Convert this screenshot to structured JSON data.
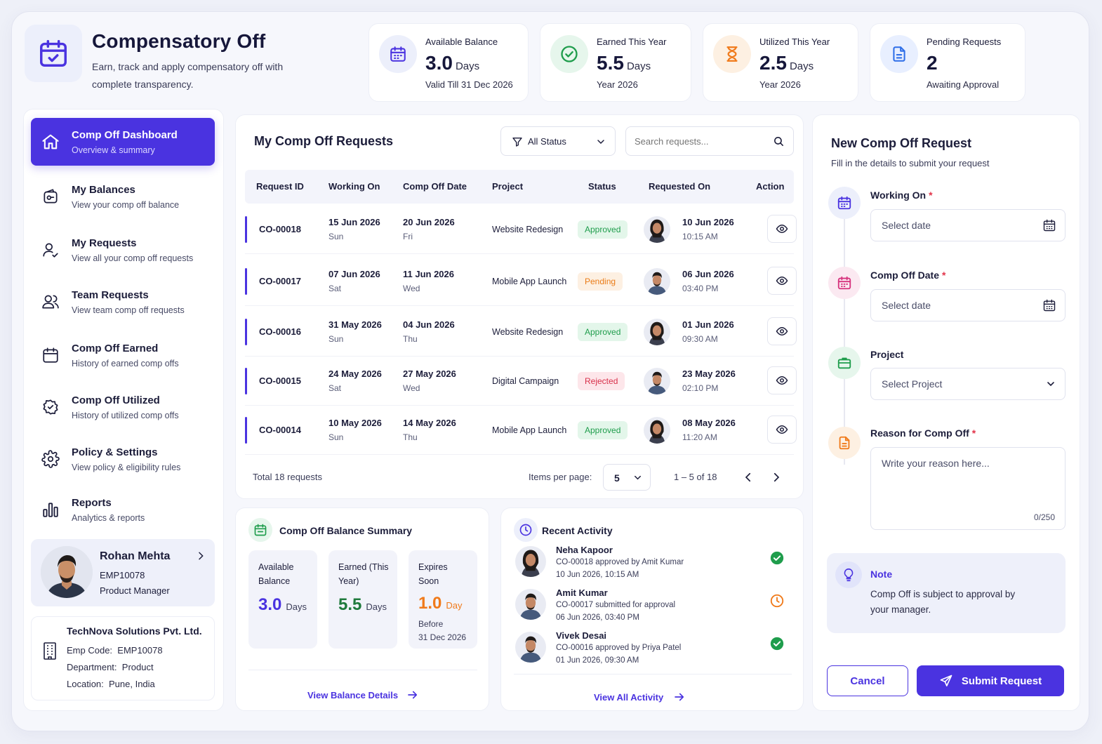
{
  "header": {
    "title": "Compensatory Off",
    "subtitle": "Earn, track and apply compensatory off with complete transparency."
  },
  "stats": [
    {
      "label": "Available Balance",
      "value": "3.0",
      "unit": "Days",
      "sub": "Valid Till 31 Dec 2026",
      "icon": "calendar-icon",
      "color": "#4a33e0"
    },
    {
      "label": "Earned This Year",
      "value": "5.5",
      "unit": "Days",
      "sub": "Year 2026",
      "icon": "check-circle-icon",
      "color": "#1f9d4c"
    },
    {
      "label": "Utilized This Year",
      "value": "2.5",
      "unit": "Days",
      "sub": "Year 2026",
      "icon": "hourglass-icon",
      "color": "#f07a1a"
    },
    {
      "label": "Pending Requests",
      "value": "2",
      "unit": "",
      "sub": "Awaiting Approval",
      "icon": "document-icon",
      "color": "#2f6fe8"
    }
  ],
  "sidebar": {
    "items": [
      {
        "title": "Comp Off Dashboard",
        "sub": "Overview & summary",
        "icon": "home-icon"
      },
      {
        "title": "My Balances",
        "sub": "View your comp off balance",
        "icon": "wallet-icon"
      },
      {
        "title": "My Requests",
        "sub": "View all your comp off requests",
        "icon": "user-icon"
      },
      {
        "title": "Team Requests",
        "sub": "View team comp off requests",
        "icon": "users-icon"
      },
      {
        "title": "Comp Off Earned",
        "sub": "History of earned comp offs",
        "icon": "calendar-icon"
      },
      {
        "title": "Comp Off Utilized",
        "sub": "History of utilized comp offs",
        "icon": "badge-icon"
      },
      {
        "title": "Policy & Settings",
        "sub": "View policy & eligibility rules",
        "icon": "gear-icon"
      },
      {
        "title": "Reports",
        "sub": "Analytics & reports",
        "icon": "bar-chart-icon"
      }
    ],
    "profile": {
      "name": "Rohan Mehta",
      "emp_id": "EMP10078",
      "role": "Product Manager"
    },
    "company": {
      "name": "TechNova Solutions Pvt. Ltd.",
      "emp_code_label": "Emp Code:",
      "emp_code": "EMP10078",
      "dept_label": "Department:",
      "dept": "Product",
      "loc_label": "Location:",
      "loc": "Pune, India"
    }
  },
  "requests": {
    "title": "My Comp Off Requests",
    "filter": "All Status",
    "search_placeholder": "Search requests...",
    "columns": [
      "Request ID",
      "Working On",
      "Comp Off Date",
      "Project",
      "Status",
      "Requested On",
      "Action"
    ],
    "rows": [
      {
        "id": "CO-00018",
        "work_date": "15 Jun 2026",
        "work_day": "Sun",
        "off_date": "20 Jun 2026",
        "off_day": "Fri",
        "project": "Website Redesign",
        "status": "Approved",
        "req_date": "10 Jun 2026",
        "req_time": "10:15 AM",
        "gender": "f"
      },
      {
        "id": "CO-00017",
        "work_date": "07 Jun 2026",
        "work_day": "Sat",
        "off_date": "11 Jun 2026",
        "off_day": "Wed",
        "project": "Mobile App Launch",
        "status": "Pending",
        "req_date": "06 Jun 2026",
        "req_time": "03:40 PM",
        "gender": "m"
      },
      {
        "id": "CO-00016",
        "work_date": "31 May 2026",
        "work_day": "Sun",
        "off_date": "04 Jun 2026",
        "off_day": "Thu",
        "project": "Website Redesign",
        "status": "Approved",
        "req_date": "01 Jun 2026",
        "req_time": "09:30 AM",
        "gender": "f"
      },
      {
        "id": "CO-00015",
        "work_date": "24 May 2026",
        "work_day": "Sat",
        "off_date": "27 May 2026",
        "off_day": "Wed",
        "project": "Digital Campaign",
        "status": "Rejected",
        "req_date": "23 May 2026",
        "req_time": "02:10 PM",
        "gender": "m"
      },
      {
        "id": "CO-00014",
        "work_date": "10 May 2026",
        "work_day": "Sun",
        "off_date": "14 May 2026",
        "off_day": "Thu",
        "project": "Mobile App Launch",
        "status": "Approved",
        "req_date": "08 May 2026",
        "req_time": "11:20 AM",
        "gender": "f"
      }
    ],
    "total": "Total 18 requests",
    "items_per_page_label": "Items per page:",
    "items_per_page": "5",
    "range": "1 – 5 of 18"
  },
  "balance_summary": {
    "title": "Comp Off Balance Summary",
    "available": {
      "label": "Available Balance",
      "value": "3.0",
      "unit": "Days"
    },
    "earned": {
      "label": "Earned (This Year)",
      "value": "5.5",
      "unit": "Days"
    },
    "expires": {
      "label": "Expires Soon",
      "value": "1.0",
      "unit": "Day",
      "before": "Before",
      "date": "31 Dec 2026"
    },
    "link": "View Balance Details"
  },
  "activity": {
    "title": "Recent Activity",
    "items": [
      {
        "name": "Neha Kapoor",
        "text": "CO-00018 approved by Amit Kumar",
        "time": "10 Jun 2026, 10:15 AM",
        "state": "done",
        "gender": "f"
      },
      {
        "name": "Amit Kumar",
        "text": "CO-00017 submitted for approval",
        "time": "06 Jun 2026, 03:40 PM",
        "state": "pending",
        "gender": "m"
      },
      {
        "name": "Vivek Desai",
        "text": "CO-00016 approved by Priya Patel",
        "time": "01 Jun 2026, 09:30 AM",
        "state": "done",
        "gender": "m"
      }
    ],
    "link": "View All Activity"
  },
  "new_request": {
    "title": "New Comp Off Request",
    "subtitle": "Fill in the details to submit your request",
    "working_on_label": "Working On",
    "working_on_placeholder": "Select date",
    "comp_off_label": "Comp Off Date",
    "comp_off_placeholder": "Select date",
    "project_label": "Project",
    "project_placeholder": "Select Project",
    "reason_label": "Reason for Comp Off",
    "reason_placeholder": "Write your reason here...",
    "char_count": "0/250",
    "note_title": "Note",
    "note_text": "Comp Off is subject to approval by your manager.",
    "cancel": "Cancel",
    "submit": "Submit Request"
  },
  "colors": {
    "accent": "#4a33e0",
    "approved_bg": "#e3f6ea",
    "approved_fg": "#1f9d4c",
    "pending_bg": "#fdf0e2",
    "pending_fg": "#ea7b16",
    "rejected_bg": "#fde6ea",
    "rejected_fg": "#d8304a"
  }
}
